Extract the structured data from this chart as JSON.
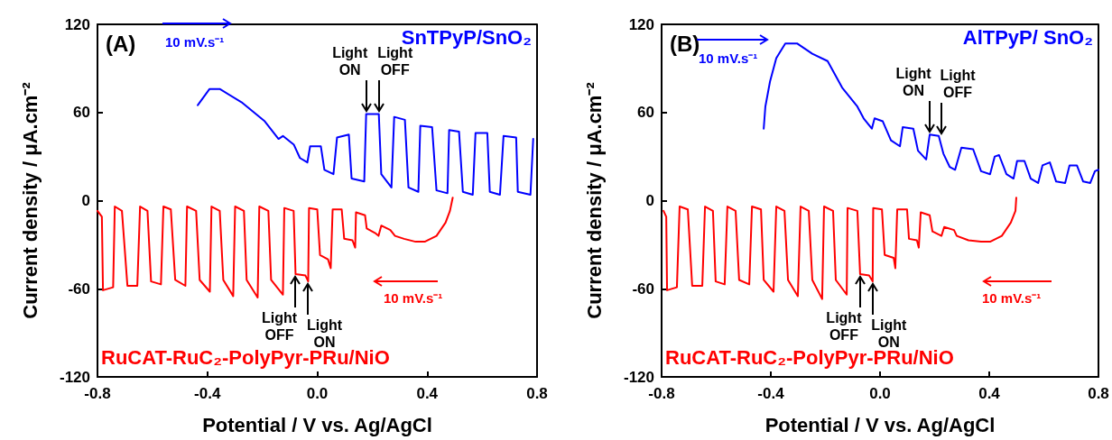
{
  "chart_data": [
    {
      "type": "line",
      "title": "(A)",
      "xlabel": "Potential / V vs. Ag/AgCl",
      "ylabel": "Current density / μA.cm⁻²",
      "xlim": [
        -0.8,
        0.8
      ],
      "xticks": [
        -0.8,
        -0.4,
        {
          "value": 0,
          "label": "0.0"
        },
        0.4,
        0.8
      ],
      "ylim": [
        -120,
        120
      ],
      "yticks": [
        -120,
        -60,
        0,
        60,
        120
      ],
      "grid": false,
      "marker": "none",
      "line_style": "solid",
      "annotations": [
        "10 mV.s⁻¹",
        "10 mV.s⁻¹",
        {
          "text": "Light ON",
          "x": 0.178,
          "y": 59
        },
        {
          "text": "Light OFF",
          "x": 0.224,
          "y": 59
        },
        {
          "text": "Light OFF",
          "x": -0.079,
          "y": -50
        },
        {
          "text": "Light ON",
          "x": -0.033,
          "y": -55
        }
      ],
      "series": [
        {
          "name": "SnTPyP/SnO₂",
          "color": "#0000ff",
          "x": [
            -0.435,
            -0.392,
            -0.355,
            -0.276,
            -0.191,
            -0.141,
            -0.125,
            -0.085,
            -0.063,
            -0.036,
            -0.026,
            0.013,
            0.026,
            0.059,
            0.072,
            0.115,
            0.125,
            0.171,
            0.178,
            0.224,
            0.233,
            0.27,
            0.28,
            0.319,
            0.332,
            0.368,
            0.375,
            0.418,
            0.434,
            0.474,
            0.48,
            0.516,
            0.53,
            0.566,
            0.576,
            0.619,
            0.628,
            0.665,
            0.678,
            0.724,
            0.73,
            0.776,
            0.786
          ],
          "values": [
            65,
            76,
            76,
            67,
            54,
            42,
            44,
            38,
            29,
            26,
            37,
            37,
            21,
            18,
            43,
            45,
            15,
            13,
            59,
            59,
            18,
            9,
            57,
            55,
            9,
            6,
            51,
            50,
            7,
            5,
            48,
            47,
            6,
            4,
            46,
            46,
            6,
            4,
            44,
            43,
            6,
            4,
            42
          ]
        },
        {
          "name": "RuCAT-RuC₂-PolyPyr-PRu/NiO",
          "color": "#ff0000",
          "x": [
            -0.8,
            -0.784,
            -0.78,
            -0.743,
            -0.737,
            -0.711,
            -0.691,
            -0.655,
            -0.645,
            -0.618,
            -0.605,
            -0.569,
            -0.56,
            -0.533,
            -0.517,
            -0.48,
            -0.474,
            -0.441,
            -0.428,
            -0.391,
            -0.385,
            -0.355,
            -0.342,
            -0.306,
            -0.299,
            -0.267,
            -0.257,
            -0.217,
            -0.211,
            -0.178,
            -0.168,
            -0.125,
            -0.12,
            -0.086,
            -0.079,
            -0.043,
            -0.033,
            -0.03,
            0.0,
            0.01,
            0.039,
            0.049,
            0.056,
            0.089,
            0.098,
            0.128,
            0.138,
            0.141,
            0.174,
            0.18,
            0.21,
            0.223,
            0.233,
            0.266,
            0.283,
            0.316,
            0.358,
            0.391,
            0.434,
            0.467,
            0.483,
            0.493
          ],
          "values": [
            -7,
            -11,
            -61,
            -59,
            -4,
            -7,
            -58,
            -58,
            -4,
            -7,
            -55,
            -57,
            -4,
            -6,
            -54,
            -58,
            -4,
            -7,
            -54,
            -62,
            -4,
            -7,
            -54,
            -65,
            -4,
            -7,
            -54,
            -66,
            -4,
            -7,
            -54,
            -64,
            -5,
            -7,
            -50,
            -51,
            -55,
            -5,
            -6,
            -37,
            -40,
            -46,
            -6,
            -6,
            -26,
            -27,
            -32,
            -8,
            -10,
            -19,
            -22,
            -24,
            -17,
            -20,
            -24,
            -26,
            -28,
            -28,
            -24,
            -15,
            -7,
            2
          ]
        }
      ]
    },
    {
      "type": "line",
      "title": "(B)",
      "xlabel": "Potential / V vs. Ag/AgCl",
      "ylabel": "Current density / μA.cm⁻²",
      "xlim": [
        -0.8,
        0.8
      ],
      "xticks": [
        -0.8,
        -0.4,
        {
          "value": 0,
          "label": "0.0"
        },
        0.4,
        0.8
      ],
      "ylim": [
        -120,
        120
      ],
      "yticks": [
        -120,
        -60,
        0,
        60,
        120
      ],
      "grid": false,
      "marker": "none",
      "line_style": "solid",
      "annotations": [
        "10 mV.s⁻¹",
        "10 mV.s⁻¹",
        {
          "text": "Light ON",
          "x": 0.182,
          "y": 45
        },
        {
          "text": "Light OFF",
          "x": 0.225,
          "y": 44
        },
        {
          "text": "Light OFF",
          "x": -0.073,
          "y": -50
        },
        {
          "text": "Light ON",
          "x": -0.027,
          "y": -55
        }
      ],
      "series": [
        {
          "name": "AlTPyP/ SnO₂",
          "color": "#0000ff",
          "x": [
            -0.426,
            -0.42,
            -0.403,
            -0.38,
            -0.347,
            -0.304,
            -0.248,
            -0.192,
            -0.139,
            -0.083,
            -0.06,
            -0.03,
            -0.02,
            0.01,
            0.04,
            0.073,
            0.083,
            0.122,
            0.139,
            0.169,
            0.182,
            0.215,
            0.232,
            0.255,
            0.275,
            0.298,
            0.341,
            0.37,
            0.403,
            0.42,
            0.436,
            0.463,
            0.489,
            0.502,
            0.529,
            0.552,
            0.579,
            0.595,
            0.622,
            0.645,
            0.678,
            0.694,
            0.721,
            0.744,
            0.77,
            0.787,
            0.8
          ],
          "values": [
            49,
            64,
            81,
            97,
            107,
            107,
            100,
            95,
            77,
            64,
            56,
            49,
            56,
            54,
            41,
            37,
            50,
            49,
            34,
            28,
            45,
            44,
            32,
            23,
            21,
            36,
            35,
            20,
            18,
            30,
            31,
            18,
            15,
            27,
            27,
            15,
            12,
            24,
            26,
            13,
            12,
            24,
            24,
            13,
            12,
            20,
            21
          ]
        },
        {
          "name": "RuCAT-RuC₂-PolyPyr-PRu/NiO",
          "color": "#ff0000",
          "x": [
            -0.793,
            -0.783,
            -0.78,
            -0.744,
            -0.734,
            -0.704,
            -0.688,
            -0.651,
            -0.641,
            -0.612,
            -0.602,
            -0.569,
            -0.559,
            -0.529,
            -0.516,
            -0.479,
            -0.469,
            -0.436,
            -0.426,
            -0.39,
            -0.38,
            -0.35,
            -0.337,
            -0.301,
            -0.291,
            -0.261,
            -0.248,
            -0.212,
            -0.205,
            -0.172,
            -0.162,
            -0.122,
            -0.119,
            -0.083,
            -0.073,
            -0.04,
            -0.027,
            -0.025,
            0.007,
            0.017,
            0.05,
            0.056,
            0.063,
            0.099,
            0.106,
            0.135,
            0.142,
            0.149,
            0.182,
            0.192,
            0.225,
            0.235,
            0.271,
            0.281,
            0.324,
            0.37,
            0.403,
            0.446,
            0.479,
            0.496,
            0.499
          ],
          "values": [
            -7,
            -11,
            -61,
            -59,
            -4,
            -6,
            -58,
            -58,
            -4,
            -7,
            -55,
            -57,
            -4,
            -7,
            -54,
            -57,
            -4,
            -6,
            -54,
            -62,
            -4,
            -7,
            -54,
            -65,
            -4,
            -7,
            -54,
            -67,
            -4,
            -7,
            -54,
            -64,
            -5,
            -7,
            -50,
            -51,
            -55,
            -5,
            -6,
            -37,
            -39,
            -46,
            -6,
            -6,
            -26,
            -27,
            -32,
            -8,
            -10,
            -21,
            -24,
            -18,
            -20,
            -24,
            -27,
            -28,
            -28,
            -24,
            -15,
            -7,
            2
          ]
        }
      ]
    }
  ]
}
